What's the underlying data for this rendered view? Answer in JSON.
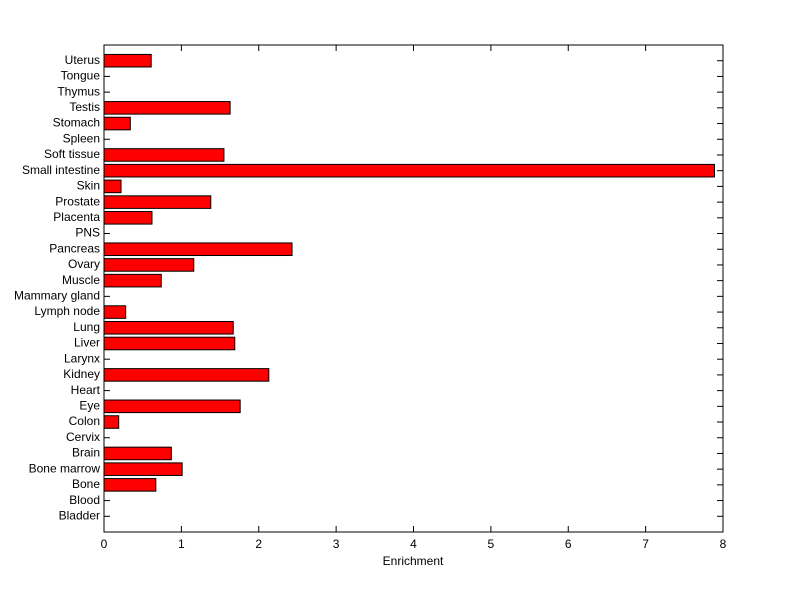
{
  "chart_data": {
    "type": "barh",
    "xlabel": "Enrichment",
    "categories": [
      "Bladder",
      "Blood",
      "Bone",
      "Bone marrow",
      "Brain",
      "Cervix",
      "Colon",
      "Eye",
      "Heart",
      "Kidney",
      "Larynx",
      "Liver",
      "Lung",
      "Lymph node",
      "Mammary gland",
      "Muscle",
      "Ovary",
      "Pancreas",
      "PNS",
      "Placenta",
      "Prostate",
      "Skin",
      "Small intestine",
      "Soft tissue",
      "Spleen",
      "Stomach",
      "Testis",
      "Thymus",
      "Tongue",
      "Uterus"
    ],
    "values": [
      0,
      0,
      0.67,
      1.01,
      0.87,
      0,
      0.19,
      1.76,
      0,
      2.13,
      0,
      1.69,
      1.67,
      0.28,
      0,
      0.74,
      1.16,
      2.43,
      0,
      0.62,
      1.38,
      0.22,
      7.89,
      1.55,
      0,
      0.34,
      1.63,
      0,
      0,
      0.61
    ],
    "color": "#ff0000",
    "xlim": [
      0,
      8
    ],
    "xticks": [
      0,
      1,
      2,
      3,
      4,
      5,
      6,
      7,
      8
    ],
    "grid": false
  }
}
